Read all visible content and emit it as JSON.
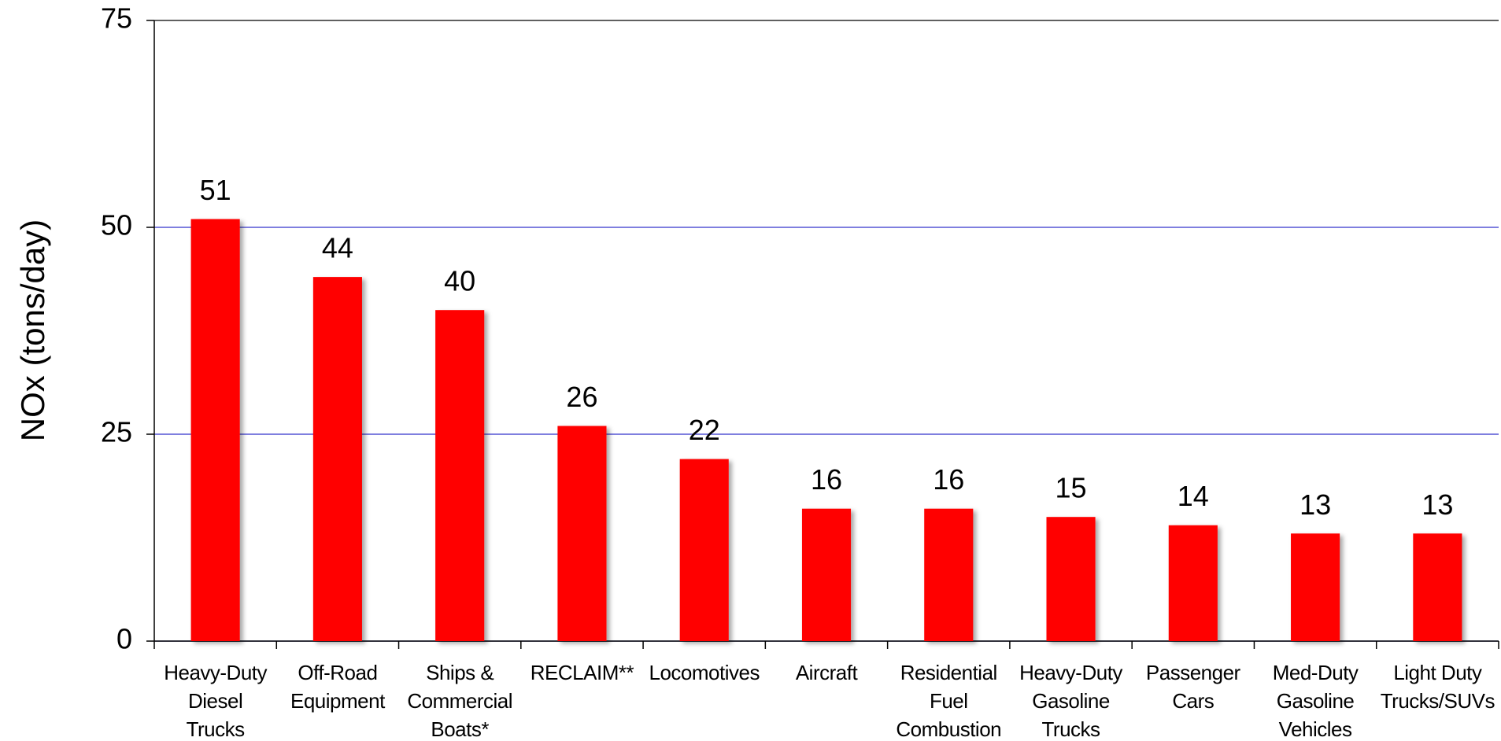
{
  "chart_data": {
    "type": "bar",
    "ylabel": "NOx (tons/day)",
    "categories": [
      "Heavy-Duty\nDiesel\nTrucks",
      "Off-Road\nEquipment",
      "Ships &\nCommercial\nBoats*",
      "RECLAIM**",
      "Locomotives",
      "Aircraft",
      "Residential\nFuel\nCombustion",
      "Heavy-Duty\nGasoline\nTrucks",
      "Passenger\nCars",
      "Med-Duty\nGasoline\nVehicles",
      "Light Duty\nTrucks/SUVs"
    ],
    "values": [
      51,
      44,
      40,
      26,
      22,
      16,
      16,
      15,
      14,
      13,
      13
    ],
    "color": "#ff0000",
    "ylim": [
      0,
      75
    ],
    "yticks": [
      0,
      25,
      50,
      75
    ],
    "grid": true,
    "grid_color": "#3333cc"
  }
}
